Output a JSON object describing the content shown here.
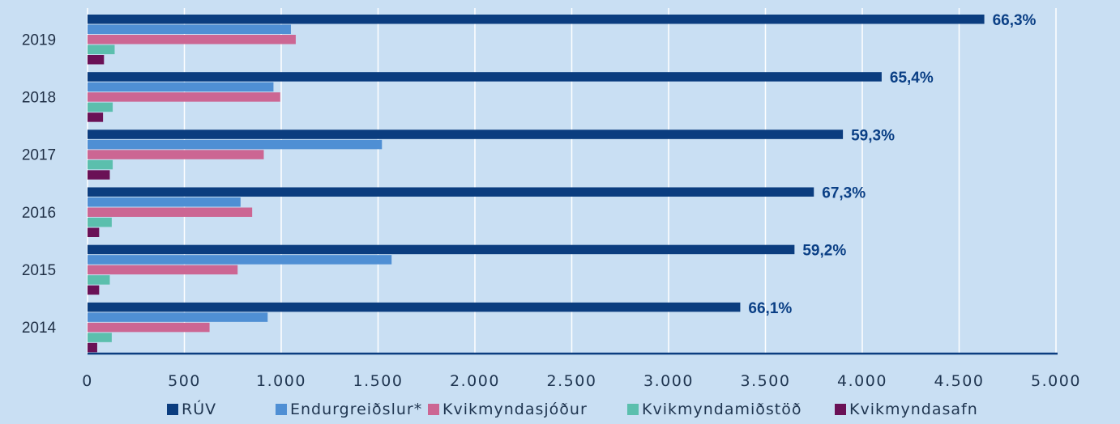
{
  "chart_data": {
    "type": "bar",
    "orientation": "horizontal",
    "categories": [
      "2019",
      "2018",
      "2017",
      "2016",
      "2015",
      "2014"
    ],
    "series": [
      {
        "name": "RÚV",
        "color": "#0b3d7f",
        "values": [
          4630,
          4100,
          3900,
          3750,
          3650,
          3370
        ]
      },
      {
        "name": "Endurgreiðslur*",
        "color": "#4f8fd4",
        "values": [
          1050,
          960,
          1520,
          790,
          1570,
          930
        ]
      },
      {
        "name": "Kvikmyndasjóður",
        "color": "#cc6693",
        "values": [
          1075,
          995,
          910,
          850,
          775,
          630
        ]
      },
      {
        "name": "Kvikmyndamiðstöð",
        "color": "#5bbfad",
        "values": [
          140,
          130,
          130,
          125,
          115,
          125
        ]
      },
      {
        "name": "Kvikmyndasafn",
        "color": "#6a1156",
        "values": [
          85,
          80,
          115,
          60,
          60,
          50
        ]
      }
    ],
    "data_labels": [
      "66,3%",
      "65,4%",
      "59,3%",
      "67,3%",
      "59,2%",
      "66,1%"
    ],
    "x_ticks": [
      "0",
      "500",
      "1.000",
      "1.500",
      "2.000",
      "2.500",
      "3.000",
      "3.500",
      "4.000",
      "4.500",
      "5.000"
    ],
    "xlim": [
      0,
      5000
    ],
    "grid": true,
    "legend_position": "bottom",
    "title": "",
    "xlabel": "",
    "ylabel": ""
  }
}
